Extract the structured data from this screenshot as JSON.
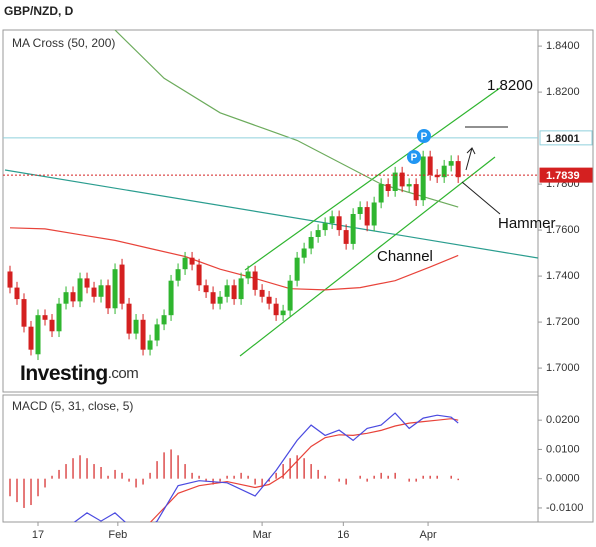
{
  "chart_data": {
    "type": "candlestick",
    "title": "GBP/NZD, D",
    "indicator_label": "MA Cross (50, 200)",
    "xlim": [
      -1,
      75.4
    ],
    "xticks": [
      {
        "value": 4,
        "label": "17"
      },
      {
        "value": 15.4,
        "label": "Feb"
      },
      {
        "value": 36,
        "label": "Mar"
      },
      {
        "value": 47.6,
        "label": "16"
      },
      {
        "value": 59.7,
        "label": "Apr"
      }
    ],
    "ylim": [
      1.6896,
      1.847
    ],
    "yticks": [
      {
        "value": 1.7,
        "label": "1.7000"
      },
      {
        "value": 1.72,
        "label": "1.7200"
      },
      {
        "value": 1.74,
        "label": "1.7400"
      },
      {
        "value": 1.76,
        "label": "1.7600"
      },
      {
        "value": 1.78,
        "label": "1.7800"
      },
      {
        "value": 1.82,
        "label": "1.8200"
      },
      {
        "value": 1.84,
        "label": "1.8400"
      }
    ],
    "up_color": "#2fb52f",
    "down_color": "#d42020",
    "open": [
      1.742,
      1.735,
      1.73,
      1.718,
      1.706,
      1.723,
      1.721,
      1.716,
      1.728,
      1.733,
      1.729,
      1.739,
      1.735,
      1.731,
      1.736,
      1.726,
      1.745,
      1.728,
      1.715,
      1.721,
      1.708,
      1.712,
      1.719,
      1.723,
      1.738,
      1.743,
      1.748,
      1.745,
      1.736,
      1.733,
      1.728,
      1.731,
      1.736,
      1.73,
      1.739,
      1.742,
      1.734,
      1.731,
      1.728,
      1.723,
      1.725,
      1.738,
      1.748,
      1.752,
      1.757,
      1.76,
      1.763,
      1.766,
      1.76,
      1.754,
      1.767,
      1.77,
      1.762,
      1.772,
      1.78,
      1.777,
      1.785,
      1.779,
      1.78,
      1.773,
      1.792,
      1.784,
      1.783,
      1.788,
      1.79
    ],
    "high": [
      1.7445,
      1.7375,
      1.7325,
      1.7205,
      1.7255,
      1.7255,
      1.7235,
      1.7305,
      1.7355,
      1.7355,
      1.7415,
      1.7415,
      1.7375,
      1.7385,
      1.7385,
      1.7455,
      1.7475,
      1.7305,
      1.7235,
      1.7235,
      1.7145,
      1.7215,
      1.7255,
      1.7405,
      1.7455,
      1.7505,
      1.7505,
      1.7475,
      1.7385,
      1.7355,
      1.7335,
      1.7385,
      1.7385,
      1.7415,
      1.7445,
      1.7445,
      1.7365,
      1.7335,
      1.7305,
      1.7275,
      1.7405,
      1.7505,
      1.7545,
      1.7595,
      1.7625,
      1.7655,
      1.7685,
      1.7685,
      1.7625,
      1.7695,
      1.7725,
      1.7725,
      1.7745,
      1.7825,
      1.7825,
      1.7875,
      1.7875,
      1.7825,
      1.7825,
      1.7945,
      1.7945,
      1.7865,
      1.7905,
      1.7925,
      1.7925
    ],
    "low": [
      1.7325,
      1.7275,
      1.7155,
      1.7055,
      1.7035,
      1.7185,
      1.7135,
      1.7135,
      1.7255,
      1.7265,
      1.7265,
      1.7325,
      1.7285,
      1.7285,
      1.7235,
      1.7235,
      1.7255,
      1.7125,
      1.7125,
      1.7055,
      1.7055,
      1.7095,
      1.7165,
      1.7205,
      1.7355,
      1.7405,
      1.7425,
      1.7335,
      1.7305,
      1.7255,
      1.7255,
      1.7285,
      1.7275,
      1.7275,
      1.7365,
      1.7315,
      1.7285,
      1.7255,
      1.7205,
      1.7205,
      1.7225,
      1.7355,
      1.7455,
      1.7495,
      1.7545,
      1.7575,
      1.7605,
      1.7575,
      1.7515,
      1.7515,
      1.7645,
      1.7595,
      1.7595,
      1.7695,
      1.7745,
      1.7745,
      1.7765,
      1.7765,
      1.7705,
      1.7705,
      1.7815,
      1.7805,
      1.7805,
      1.7855,
      1.7805
    ],
    "close": [
      1.735,
      1.73,
      1.718,
      1.708,
      1.723,
      1.721,
      1.716,
      1.728,
      1.733,
      1.729,
      1.739,
      1.735,
      1.731,
      1.736,
      1.726,
      1.743,
      1.728,
      1.715,
      1.721,
      1.708,
      1.712,
      1.719,
      1.723,
      1.738,
      1.743,
      1.748,
      1.745,
      1.736,
      1.733,
      1.728,
      1.731,
      1.736,
      1.73,
      1.739,
      1.742,
      1.734,
      1.731,
      1.728,
      1.723,
      1.725,
      1.738,
      1.748,
      1.752,
      1.757,
      1.76,
      1.763,
      1.766,
      1.76,
      1.754,
      1.767,
      1.77,
      1.762,
      1.772,
      1.78,
      1.777,
      1.785,
      1.779,
      1.78,
      1.773,
      1.792,
      1.784,
      1.783,
      1.788,
      1.79,
      1.783
    ],
    "ma_series": [
      {
        "color": "#e8433a",
        "x": [
          0,
          5,
          10,
          15,
          20,
          25,
          30,
          35,
          40,
          45,
          50,
          55,
          60,
          64
        ],
        "values": [
          1.761,
          1.7605,
          1.758,
          1.7555,
          1.752,
          1.7485,
          1.743,
          1.739,
          1.7345,
          1.734,
          1.735,
          1.738,
          1.744,
          1.749
        ]
      },
      {
        "color": "#6cab5c",
        "x": [
          15,
          22,
          30,
          41,
          53,
          64
        ],
        "values": [
          1.847,
          1.826,
          1.811,
          1.799,
          1.78,
          1.77
        ]
      }
    ],
    "levels": [
      {
        "value": 1.8001,
        "color": "#8fd0dc",
        "box_fill": "#ffffff",
        "box_text": "#222222"
      },
      {
        "value": 1.7839,
        "color": "#d42020",
        "box_fill": "#d42020",
        "box_text": "#ffffff"
      }
    ],
    "annotations": {
      "target": "1.8200",
      "hammer": "Hammer",
      "channel": "Channel",
      "markers": [
        "P",
        "P"
      ]
    },
    "logo": {
      "name": "Investing",
      "suffix": ".com"
    },
    "macd": {
      "title": "MACD (5, 31, close, 5)",
      "ylim": [
        -0.0148,
        0.0286
      ],
      "yticks": [
        {
          "value": -0.01,
          "label": "-0.0100"
        },
        {
          "value": 0,
          "label": "0.0000"
        },
        {
          "value": 0.01,
          "label": "0.0100"
        },
        {
          "value": 0.02,
          "label": "0.0200"
        }
      ],
      "macd_line": {
        "color": "#4a4ae0",
        "x": [
          9,
          11,
          13,
          15,
          17,
          19,
          21,
          24,
          27,
          31,
          35,
          38,
          41,
          43,
          45,
          47,
          49,
          51,
          53,
          55,
          57,
          59,
          61,
          63,
          64
        ],
        "values": [
          -0.0152,
          -0.0117,
          -0.0145,
          -0.0117,
          -0.016,
          -0.018,
          -0.0145,
          -0.0024,
          -0.0007,
          -0.0014,
          -0.0059,
          0.0028,
          0.0131,
          0.0183,
          0.0148,
          0.0166,
          0.0131,
          0.0172,
          0.0183,
          0.0224,
          0.0172,
          0.0207,
          0.0217,
          0.021,
          0.019
        ]
      },
      "signal_line": {
        "color": "#e8433a",
        "x": [
          13,
          17,
          20,
          22,
          24,
          27,
          31,
          35,
          37,
          39,
          41,
          43,
          45,
          47,
          49,
          51,
          53,
          55,
          57,
          59,
          61,
          63,
          64
        ],
        "values": [
          -0.017,
          -0.018,
          -0.015,
          -0.01,
          -0.005,
          -0.0024,
          -0.001,
          -0.003,
          -0.002,
          0.001,
          0.006,
          0.011,
          0.014,
          0.015,
          0.0148,
          0.0155,
          0.0165,
          0.018,
          0.019,
          0.0195,
          0.02,
          0.0205,
          0.02
        ]
      },
      "histogram": {
        "color": "#d42020",
        "values": [
          -0.006,
          -0.008,
          -0.01,
          -0.009,
          -0.006,
          -0.003,
          0.001,
          0.003,
          0.005,
          0.007,
          0.008,
          0.007,
          0.005,
          0.004,
          0.001,
          0.003,
          0.002,
          -0.001,
          -0.003,
          -0.002,
          0.002,
          0.006,
          0.009,
          0.01,
          0.008,
          0.005,
          0.002,
          0.001,
          -0.001,
          -0.002,
          -0.001,
          0.001,
          0.001,
          0.002,
          0.001,
          -0.002,
          -0.003,
          -0.001,
          0.002,
          0.005,
          0.007,
          0.008,
          0.007,
          0.005,
          0.003,
          0.001,
          0.0,
          -0.001,
          -0.002,
          0.0,
          0.001,
          -0.001,
          0.001,
          0.002,
          0.001,
          0.002,
          0.0,
          -0.001,
          -0.001,
          0.001,
          0.001,
          0.001,
          0.0,
          0.001,
          -0.0005
        ]
      }
    }
  }
}
